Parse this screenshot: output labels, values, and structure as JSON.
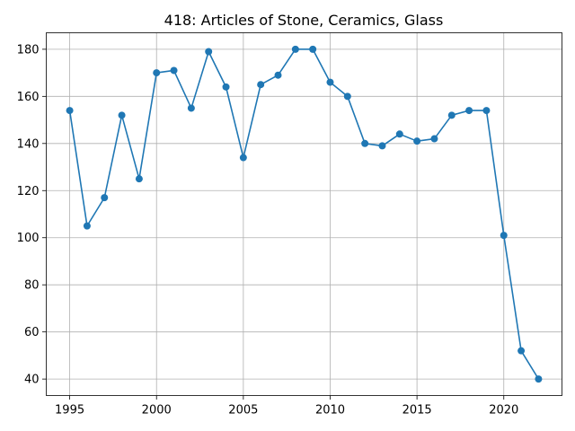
{
  "chart_data": {
    "type": "line",
    "title": "418: Articles of Stone, Ceramics, Glass",
    "xlabel": "",
    "ylabel": "",
    "x": [
      1995,
      1996,
      1997,
      1998,
      1999,
      2000,
      2001,
      2002,
      2003,
      2004,
      2005,
      2006,
      2007,
      2008,
      2009,
      2010,
      2011,
      2012,
      2013,
      2014,
      2015,
      2016,
      2017,
      2018,
      2019,
      2020,
      2021,
      2022
    ],
    "series": [
      {
        "values": [
          154,
          105,
          117,
          152,
          125,
          170,
          171,
          155,
          179,
          164,
          134,
          165,
          169,
          180,
          180,
          166,
          160,
          140,
          139,
          144,
          141,
          142,
          152,
          154,
          154,
          101,
          52,
          40
        ]
      }
    ],
    "xlim": [
      1993.65,
      1986.35
    ],
    "ylim": [
      33,
      187
    ],
    "xticks": [
      1995,
      2000,
      2005,
      2010,
      2015,
      2020
    ],
    "yticks": [
      40,
      60,
      80,
      100,
      120,
      140,
      160,
      180
    ],
    "grid": true,
    "colors": {
      "line": "#1f77b4",
      "marker": "#1f77b4"
    }
  }
}
